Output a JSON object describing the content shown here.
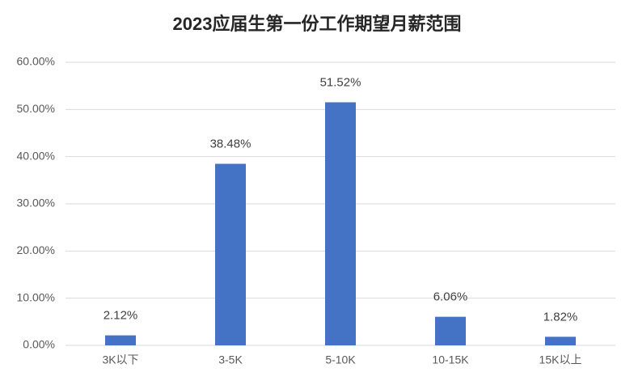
{
  "chart_data": {
    "type": "bar",
    "title": "2023应届生第一份工作期望月薪范围",
    "categories": [
      "3K以下",
      "3-5K",
      "5-10K",
      "10-15K",
      "15K以上"
    ],
    "values": [
      2.12,
      38.48,
      51.52,
      6.06,
      1.82
    ],
    "value_labels": [
      "2.12%",
      "38.48%",
      "51.52%",
      "6.06%",
      "1.82%"
    ],
    "color": "#4472c4",
    "ylim": [
      0,
      60
    ],
    "yticks": [
      {
        "value": 0,
        "label": "0.00%"
      },
      {
        "value": 10,
        "label": "10.00%"
      },
      {
        "value": 20,
        "label": "20.00%"
      },
      {
        "value": 30,
        "label": "30.00%"
      },
      {
        "value": 40,
        "label": "40.00%"
      },
      {
        "value": 50,
        "label": "50.00%"
      },
      {
        "value": 60,
        "label": "60.00%"
      }
    ],
    "grid": true
  }
}
